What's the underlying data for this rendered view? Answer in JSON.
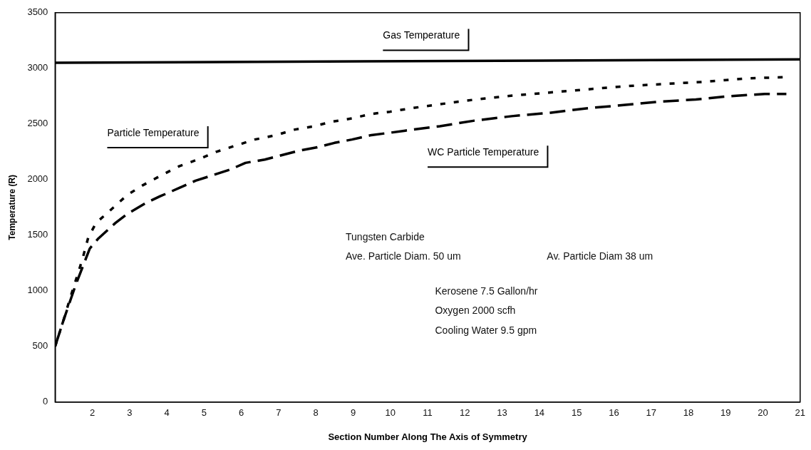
{
  "chart_data": {
    "type": "line",
    "xlabel": "Section Number Along The Axis of Symmetry",
    "ylabel": "Temperature (R)",
    "xlim": [
      1,
      21
    ],
    "xticks": [
      2,
      3,
      4,
      5,
      6,
      7,
      8,
      9,
      10,
      11,
      12,
      13,
      14,
      15,
      16,
      17,
      18,
      19,
      20,
      21
    ],
    "ylim": [
      0,
      3500
    ],
    "yticks": [
      0,
      500,
      1000,
      1500,
      2000,
      2500,
      3000,
      3500
    ],
    "grid": false,
    "legend": false,
    "marker": "none",
    "series": [
      {
        "name": "Gas Temperature",
        "color": "#000000",
        "line_style": "solid",
        "x": [
          1,
          21
        ],
        "values": [
          3050,
          3080
        ]
      },
      {
        "name": "Particle Temperature",
        "color": "#000000",
        "line_style": "dotted",
        "x": [
          1,
          1.23,
          1.39,
          1.73,
          1.89,
          2.1,
          2.57,
          2.93,
          3.36,
          3.86,
          4.33,
          4.83,
          5.33,
          5.89,
          6.36,
          6.94,
          7.44,
          7.96,
          8.43,
          8.97,
          9.49,
          9.99,
          10.54,
          10.96,
          12.04,
          13.11,
          14.19,
          15.26,
          16.34,
          17.4,
          18.49,
          19.57,
          20.56
        ],
        "values": [
          500,
          740,
          920,
          1280,
          1480,
          1610,
          1750,
          1860,
          1950,
          2040,
          2120,
          2180,
          2250,
          2310,
          2360,
          2400,
          2450,
          2480,
          2520,
          2550,
          2590,
          2610,
          2640,
          2660,
          2710,
          2750,
          2780,
          2810,
          2840,
          2860,
          2880,
          2910,
          2920
        ]
      },
      {
        "name": "WC Particle Temperature",
        "color": "#000000",
        "line_style": "dashed",
        "x": [
          1,
          1.23,
          1.56,
          1.93,
          2.16,
          2.62,
          2.93,
          3.44,
          3.82,
          4.37,
          4.77,
          5.24,
          5.7,
          6.11,
          6.63,
          7.09,
          7.56,
          8.04,
          8.5,
          8.97,
          9.49,
          9.97,
          10.4,
          11.33,
          12.26,
          13.26,
          14.27,
          15.26,
          16.26,
          17.19,
          18.2,
          19.12,
          20.05,
          20.63
        ],
        "values": [
          500,
          740,
          1060,
          1380,
          1470,
          1610,
          1690,
          1790,
          1850,
          1930,
          1990,
          2040,
          2090,
          2150,
          2180,
          2220,
          2260,
          2290,
          2330,
          2360,
          2400,
          2420,
          2440,
          2480,
          2530,
          2570,
          2600,
          2640,
          2670,
          2700,
          2720,
          2750,
          2770,
          2770
        ]
      }
    ],
    "annotations": [
      "Tungsten Carbide",
      "Ave. Particle Diam. 50 um",
      "Av. Particle Diam 38 um",
      "Kerosene 7.5 Gallon/hr",
      "Oxygen 2000 scfh",
      "Cooling Water 9.5 gpm"
    ]
  }
}
